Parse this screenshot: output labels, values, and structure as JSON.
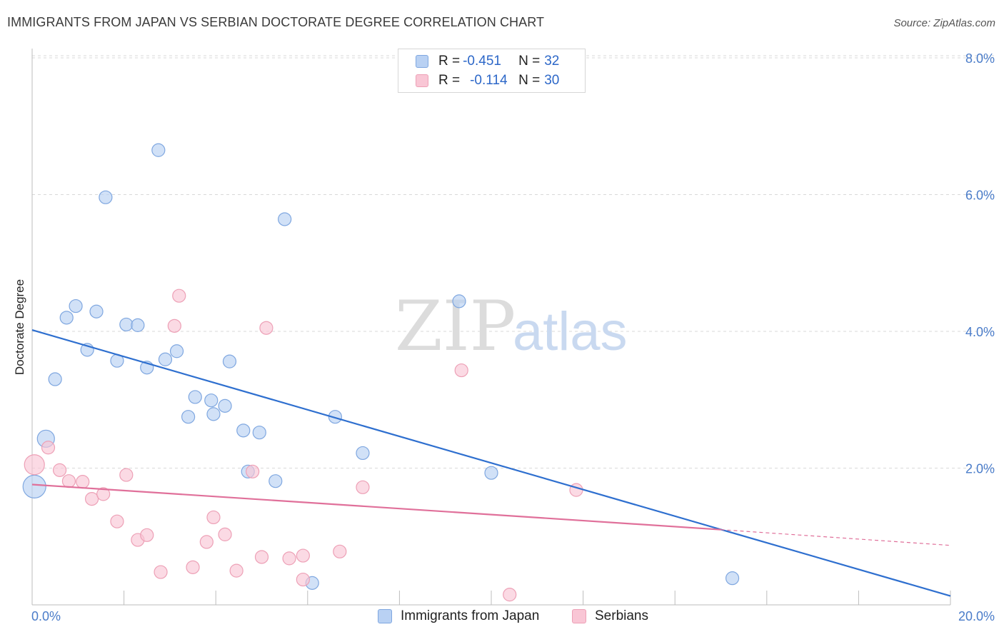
{
  "title": "IMMIGRANTS FROM JAPAN VS SERBIAN DOCTORATE DEGREE CORRELATION CHART",
  "source": "Source: ZipAtlas.com",
  "watermark": {
    "zip": "ZIP",
    "atlas": "atlas"
  },
  "legend": {
    "series1": {
      "r_label": "R = ",
      "r_value": "-0.451",
      "n_label": "N = ",
      "n_value": "32"
    },
    "series2": {
      "r_label": "R = ",
      "r_value": "-0.114",
      "n_label": "N = ",
      "n_value": "30"
    }
  },
  "bottom_legend": {
    "series1": "Immigrants from Japan",
    "series2": "Serbians"
  },
  "colors": {
    "blue_fill": "#b9d1f3",
    "blue_stroke": "#7fa7e0",
    "blue_line": "#2e6fcf",
    "pink_fill": "#f9c6d5",
    "pink_stroke": "#eda0b6",
    "pink_line": "#e0709a",
    "grid": "#d9d9d9",
    "tick_text": "#4a7cc9"
  },
  "chart_data": {
    "type": "scatter",
    "title": "IMMIGRANTS FROM JAPAN VS SERBIAN DOCTORATE DEGREE CORRELATION CHART",
    "xlabel": "",
    "ylabel": "Doctorate Degree",
    "xlim": [
      0,
      20
    ],
    "ylim": [
      0,
      8.3
    ],
    "x_tick_labels": [
      "0.0%",
      "20.0%"
    ],
    "y_ticks": [
      2,
      4,
      6,
      8
    ],
    "y_tick_labels": [
      "2.0%",
      "4.0%",
      "6.0%",
      "8.0%"
    ],
    "grid": true,
    "legend": "top-center",
    "series": [
      {
        "name": "Immigrants from Japan",
        "color": "blue",
        "r": -0.451,
        "n": 32,
        "points": [
          [
            0.05,
            1.73,
            16
          ],
          [
            0.3,
            2.43,
            12
          ],
          [
            0.5,
            3.3,
            9
          ],
          [
            0.75,
            4.2,
            9
          ],
          [
            0.95,
            4.37,
            9
          ],
          [
            1.2,
            3.73,
            9
          ],
          [
            1.4,
            4.29,
            9
          ],
          [
            1.6,
            5.96,
            9
          ],
          [
            1.85,
            3.57,
            9
          ],
          [
            2.05,
            4.1,
            9
          ],
          [
            2.3,
            4.09,
            9
          ],
          [
            2.5,
            3.47,
            9
          ],
          [
            2.75,
            6.65,
            9
          ],
          [
            2.9,
            3.59,
            9
          ],
          [
            3.15,
            3.71,
            9
          ],
          [
            3.4,
            2.75,
            9
          ],
          [
            3.55,
            3.04,
            9
          ],
          [
            3.9,
            2.99,
            9
          ],
          [
            3.95,
            2.79,
            9
          ],
          [
            4.2,
            2.91,
            9
          ],
          [
            4.3,
            3.56,
            9
          ],
          [
            4.6,
            2.55,
            9
          ],
          [
            4.7,
            1.95,
            9
          ],
          [
            4.95,
            2.52,
            9
          ],
          [
            5.3,
            1.81,
            9
          ],
          [
            5.5,
            5.64,
            9
          ],
          [
            6.1,
            0.32,
            9
          ],
          [
            6.6,
            2.75,
            9
          ],
          [
            7.2,
            2.22,
            9
          ],
          [
            9.3,
            4.44,
            9
          ],
          [
            10.0,
            1.93,
            9
          ],
          [
            15.25,
            0.39,
            9
          ]
        ],
        "trend": [
          [
            0,
            4.02
          ],
          [
            20,
            0.13
          ]
        ]
      },
      {
        "name": "Serbians",
        "color": "pink",
        "r": -0.114,
        "n": 30,
        "points": [
          [
            0.05,
            2.05,
            14
          ],
          [
            0.35,
            2.3,
            9
          ],
          [
            0.6,
            1.97,
            9
          ],
          [
            0.8,
            1.81,
            9
          ],
          [
            1.1,
            1.8,
            9
          ],
          [
            1.3,
            1.55,
            9
          ],
          [
            1.55,
            1.62,
            9
          ],
          [
            1.85,
            1.22,
            9
          ],
          [
            2.05,
            1.9,
            9
          ],
          [
            2.3,
            0.95,
            9
          ],
          [
            2.5,
            1.02,
            9
          ],
          [
            2.8,
            0.48,
            9
          ],
          [
            3.1,
            4.08,
            9
          ],
          [
            3.2,
            4.52,
            9
          ],
          [
            3.5,
            0.55,
            9
          ],
          [
            3.8,
            0.92,
            9
          ],
          [
            3.95,
            1.28,
            9
          ],
          [
            4.2,
            1.03,
            9
          ],
          [
            4.45,
            0.5,
            9
          ],
          [
            4.8,
            1.95,
            9
          ],
          [
            5.0,
            0.7,
            9
          ],
          [
            5.1,
            4.05,
            9
          ],
          [
            5.6,
            0.68,
            9
          ],
          [
            5.9,
            0.72,
            9
          ],
          [
            5.9,
            0.37,
            9
          ],
          [
            6.7,
            0.78,
            9
          ],
          [
            7.2,
            1.72,
            9
          ],
          [
            9.35,
            3.43,
            9
          ],
          [
            10.4,
            0.15,
            9
          ],
          [
            11.85,
            1.68,
            9
          ]
        ],
        "trend": [
          [
            0,
            1.76
          ],
          [
            15,
            1.1
          ]
        ],
        "trend_dashed": [
          [
            15,
            1.1
          ],
          [
            20,
            0.87
          ]
        ]
      }
    ]
  }
}
